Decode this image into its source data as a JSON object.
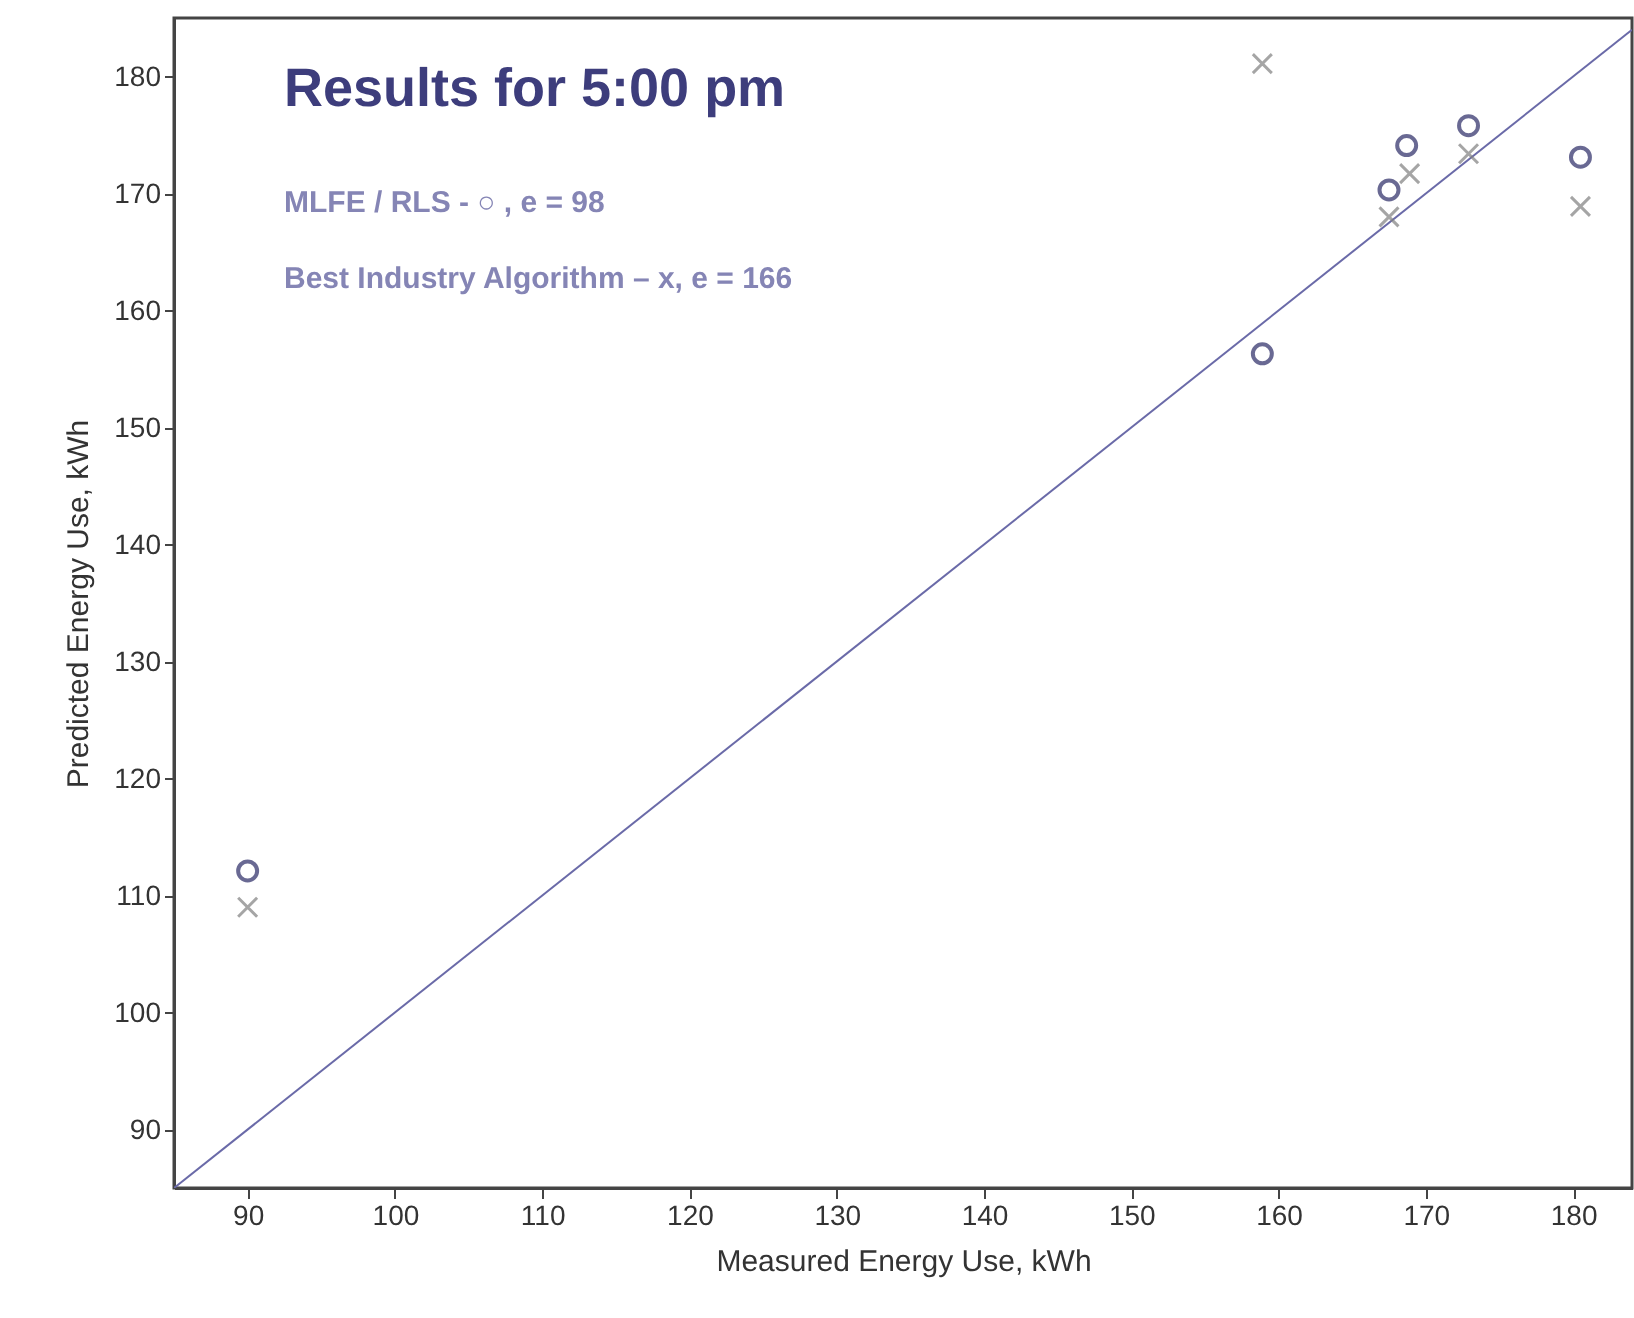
{
  "chart_data": {
    "type": "scatter",
    "title": "Results for 5:00 pm",
    "annotations": [
      "MLFE / RLS  -   ○ , e = 98",
      "Best Industry Algorithm – x,  e = 166"
    ],
    "xlabel": "Measured Energy Use, kWh",
    "ylabel": "Predicted Energy Use, kWh",
    "xlim": [
      85,
      184
    ],
    "ylim": [
      85,
      185
    ],
    "xticks": [
      90,
      100,
      110,
      120,
      130,
      140,
      150,
      160,
      170,
      180
    ],
    "yticks": [
      90,
      100,
      110,
      120,
      130,
      140,
      150,
      160,
      170,
      180
    ],
    "grid": false,
    "series": [
      {
        "type": "line",
        "color": "#6a6aa8",
        "marker": "none",
        "line_style": "solid",
        "x": [
          85,
          184
        ],
        "values": [
          85,
          184
        ]
      },
      {
        "color": "#2b2b66",
        "marker": "circle",
        "x": [
          90,
          158.9,
          167.5,
          168.7,
          172.9,
          180.5
        ],
        "values": [
          112.1,
          156.3,
          170.3,
          174.1,
          175.8,
          173.1
        ]
      },
      {
        "color": "#808080",
        "marker": "cross",
        "x": [
          90,
          158.9,
          167.5,
          168.9,
          172.9,
          180.5
        ],
        "values": [
          109.0,
          181.1,
          168.0,
          171.7,
          173.4,
          168.9
        ]
      }
    ]
  }
}
